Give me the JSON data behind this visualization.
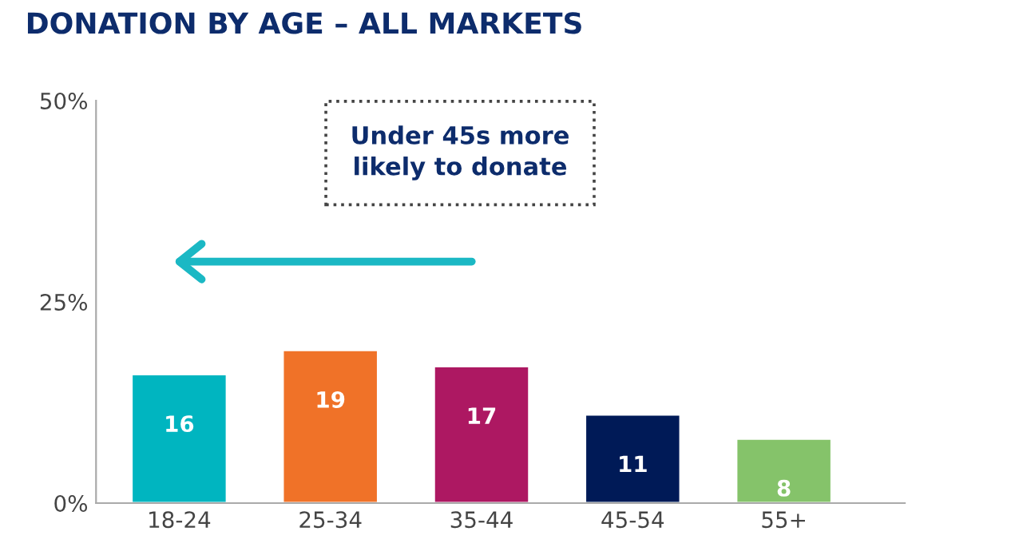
{
  "chart_data": {
    "type": "bar",
    "title": "DONATION BY AGE – ALL MARKETS",
    "categories": [
      "18-24",
      "25-34",
      "35-44",
      "45-54",
      "55+"
    ],
    "values": [
      16,
      19,
      17,
      11,
      8
    ],
    "colors": [
      "#00b5c0",
      "#f07228",
      "#ad1862",
      "#001a57",
      "#85c36a"
    ],
    "ylim": [
      0,
      50
    ],
    "yticks": [
      {
        "value": 0,
        "label": "0%"
      },
      {
        "value": 25,
        "label": "25%"
      },
      {
        "value": 50,
        "label": "50%"
      }
    ],
    "data_labels": true,
    "grid": false,
    "annotations": [
      "Under 45s more\nlikely to donate"
    ]
  }
}
